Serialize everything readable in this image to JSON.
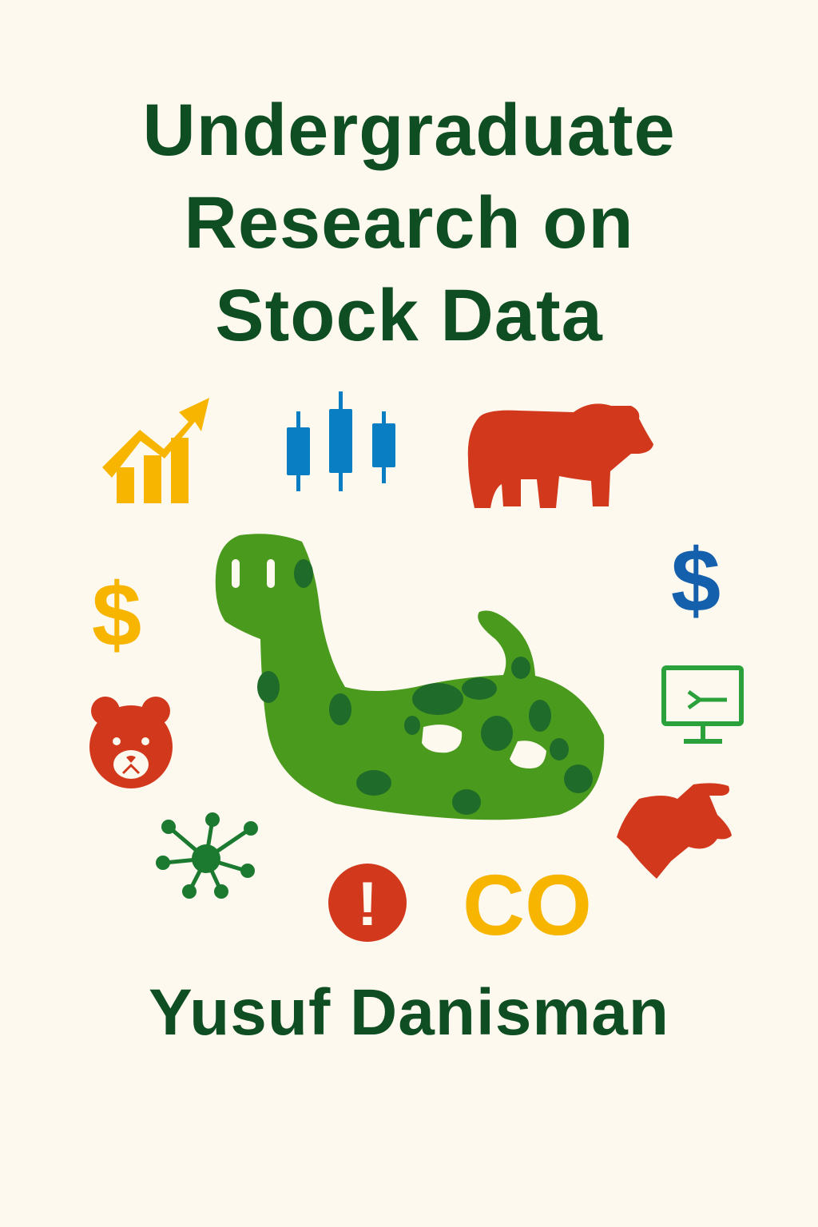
{
  "cover": {
    "title_lines": [
      "Undergraduate",
      "Research on",
      "Stock Data"
    ],
    "author": "Yusuf Danisman",
    "co_text": "CO",
    "dollar_symbol": "$",
    "alert_symbol": "!"
  },
  "colors": {
    "background": "#fdf9ef",
    "title": "#0f4d22",
    "python_green": "#4a9a1e",
    "python_spots": "#1f6b2a",
    "yellow": "#f7b500",
    "blue": "#0a7ec2",
    "dark_blue": "#1560ad",
    "red": "#d2391c",
    "network_green": "#1b7a2f",
    "monitor_green": "#2aa13b"
  },
  "icons": [
    "growth-chart-arrow-icon",
    "candlestick-chart-icon",
    "bear-icon",
    "dollar-sign-icon",
    "bear-face-icon",
    "network-node-icon",
    "alert-icon",
    "monitor-terminal-icon",
    "bull-head-icon",
    "python-snake-illustration"
  ]
}
